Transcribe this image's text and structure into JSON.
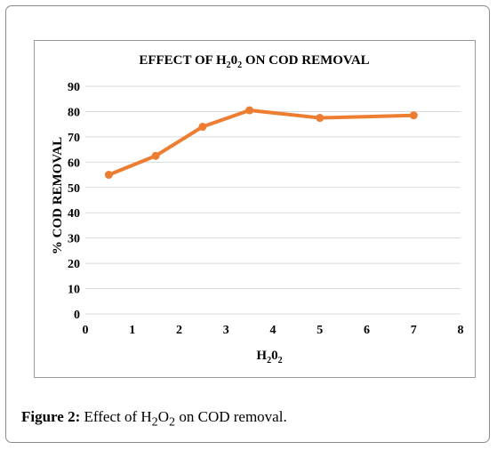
{
  "chart_data": {
    "type": "line",
    "title": "EFFECT OF H",
    "title_sub": "2",
    "title_mid": "0",
    "title_sub2": "2",
    "title_end": " ON COD REMOVAL",
    "xlabel": "H",
    "xlabel_sub": "2",
    "xlabel_mid": "0",
    "xlabel_sub2": "2",
    "ylabel": "% COD REMOVAL",
    "xlim": [
      0,
      8
    ],
    "ylim": [
      0,
      90
    ],
    "xticks": [
      0,
      1,
      2,
      3,
      4,
      5,
      6,
      7,
      8
    ],
    "yticks": [
      0,
      10,
      20,
      30,
      40,
      50,
      60,
      70,
      80,
      90
    ],
    "grid": true,
    "series": [
      {
        "x": [
          0.5,
          1.5,
          2.5,
          3.5,
          5,
          7
        ],
        "y": [
          55,
          62.5,
          74,
          80.5,
          77.5,
          78.5
        ],
        "color": "#ed7d31"
      }
    ]
  },
  "caption": {
    "label": "Figure 2:",
    "text_pre": " Effect of H",
    "sub1": "2",
    "mid": "O",
    "sub2": "2",
    "text_post": " on COD removal."
  }
}
